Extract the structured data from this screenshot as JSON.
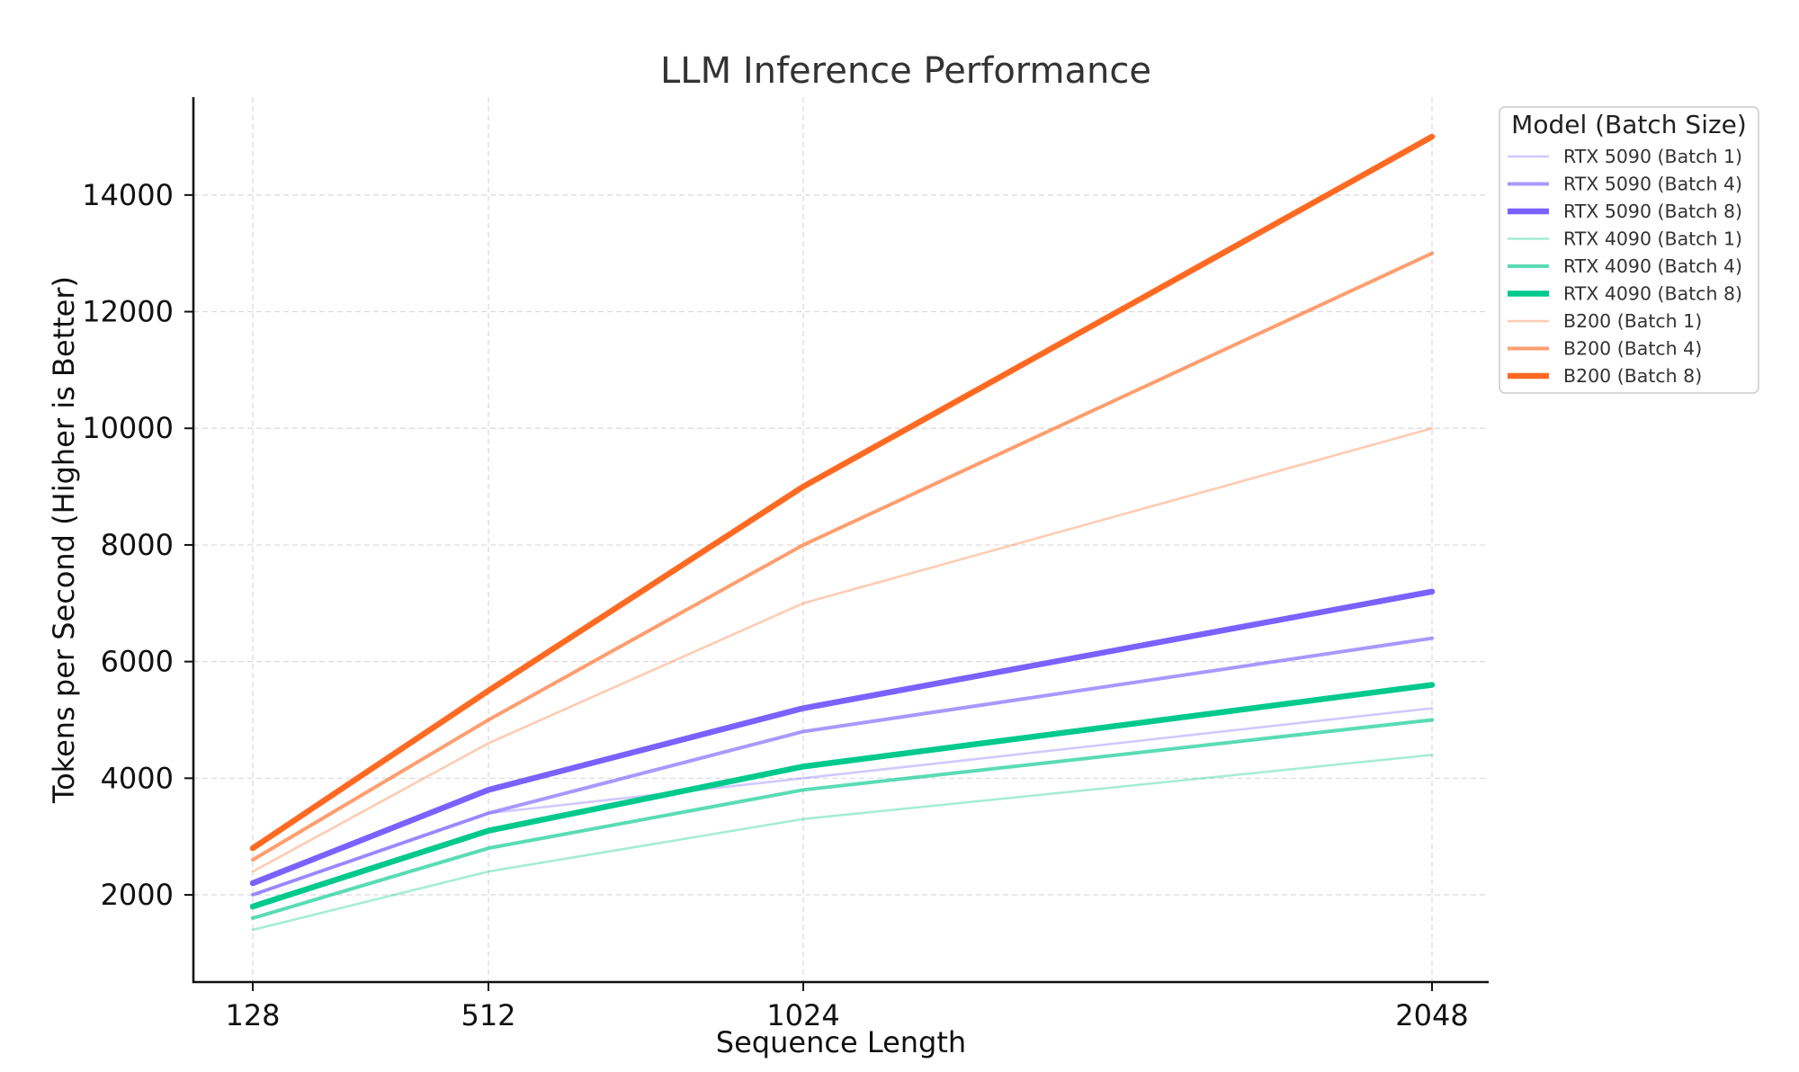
{
  "chart_data": {
    "type": "line",
    "title": "LLM Inference Performance",
    "xlabel": "Sequence Length",
    "ylabel": "Tokens per Second (Higher is Better)",
    "x": [
      128,
      512,
      1024,
      2048
    ],
    "x_tick_labels": [
      "128",
      "512",
      "1024",
      "2048"
    ],
    "y_ticks": [
      2000,
      4000,
      6000,
      8000,
      10000,
      12000,
      14000
    ],
    "y_tick_labels": [
      "2000",
      "4000",
      "6000",
      "8000",
      "10000",
      "12000",
      "14000"
    ],
    "ylim": [
      800,
      15700
    ],
    "grid": true,
    "legend": {
      "title": "Model (Batch Size)",
      "placement": "outside-top-right"
    },
    "series": [
      {
        "name": "RTX 5090 (Batch 1)",
        "color": "#7B61FF",
        "opacity": 0.35,
        "weight": 1,
        "values": [
          2000,
          3400,
          4000,
          5200
        ]
      },
      {
        "name": "RTX 5090 (Batch 4)",
        "color": "#7B61FF",
        "opacity": 0.65,
        "weight": 2,
        "values": [
          2000,
          3400,
          4800,
          6400
        ]
      },
      {
        "name": "RTX 5090 (Batch 8)",
        "color": "#7B61FF",
        "opacity": 1.0,
        "weight": 3,
        "values": [
          2200,
          3800,
          5200,
          7200
        ]
      },
      {
        "name": "RTX 4090 (Batch 1)",
        "color": "#00C98D",
        "opacity": 0.35,
        "weight": 1,
        "values": [
          1400,
          2400,
          3300,
          4400
        ]
      },
      {
        "name": "RTX 4090 (Batch 4)",
        "color": "#00C98D",
        "opacity": 0.65,
        "weight": 2,
        "values": [
          1600,
          2800,
          3800,
          5000
        ]
      },
      {
        "name": "RTX 4090 (Batch 8)",
        "color": "#00C98D",
        "opacity": 1.0,
        "weight": 3,
        "values": [
          1800,
          3100,
          4200,
          5600
        ]
      },
      {
        "name": "B200 (Batch 1)",
        "color": "#FF6A22",
        "opacity": 0.35,
        "weight": 1,
        "values": [
          2400,
          4600,
          7000,
          10000
        ]
      },
      {
        "name": "B200 (Batch 4)",
        "color": "#FF6A22",
        "opacity": 0.65,
        "weight": 2,
        "values": [
          2600,
          5000,
          8000,
          13000
        ]
      },
      {
        "name": "B200 (Batch 8)",
        "color": "#FF6A22",
        "opacity": 1.0,
        "weight": 3,
        "values": [
          2800,
          5500,
          9000,
          15000
        ]
      }
    ]
  }
}
